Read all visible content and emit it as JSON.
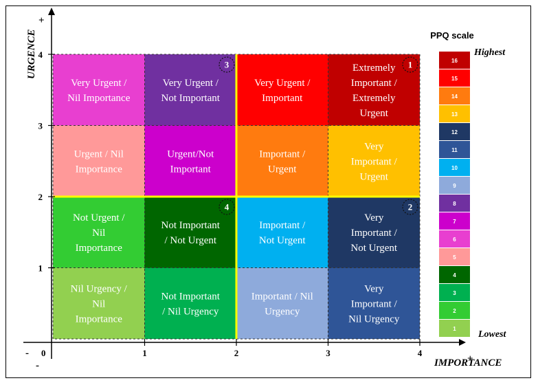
{
  "axes": {
    "x_title": "IMPORTANCE",
    "y_title": "URGENCE",
    "x_ticks": [
      "1",
      "2",
      "3",
      "4"
    ],
    "y_ticks": [
      "1",
      "2",
      "3",
      "4"
    ],
    "origin": "0",
    "plus": "+",
    "minus": "-"
  },
  "cells": [
    {
      "row": 3,
      "col": 0,
      "color": "#e83fd0",
      "lines": [
        "Very Urgent /",
        "Nil Importance"
      ]
    },
    {
      "row": 3,
      "col": 1,
      "color": "#7030a0",
      "lines": [
        "Very Urgent /",
        "Not Important"
      ]
    },
    {
      "row": 3,
      "col": 2,
      "color": "#ff0000",
      "lines": [
        "Very Urgent /",
        "Important"
      ]
    },
    {
      "row": 3,
      "col": 3,
      "color": "#c00000",
      "lines": [
        "Extremely",
        "Important /",
        "Extremely",
        "Urgent"
      ]
    },
    {
      "row": 2,
      "col": 0,
      "color": "#ff9999",
      "lines": [
        "Urgent / Nil",
        "Importance"
      ]
    },
    {
      "row": 2,
      "col": 1,
      "color": "#cc00cc",
      "lines": [
        "Urgent/Not",
        "Important"
      ]
    },
    {
      "row": 2,
      "col": 2,
      "color": "#ff7b0f",
      "lines": [
        "Important /",
        "Urgent"
      ]
    },
    {
      "row": 2,
      "col": 3,
      "color": "#ffc000",
      "lines": [
        "Very",
        "Important /",
        "Urgent"
      ]
    },
    {
      "row": 1,
      "col": 0,
      "color": "#33cc33",
      "lines": [
        "Not Urgent /",
        "Nil",
        "Importance"
      ]
    },
    {
      "row": 1,
      "col": 1,
      "color": "#006600",
      "lines": [
        "Not Important",
        "/ Not Urgent"
      ]
    },
    {
      "row": 1,
      "col": 2,
      "color": "#00b0f0",
      "lines": [
        "Important /",
        "Not Urgent"
      ]
    },
    {
      "row": 1,
      "col": 3,
      "color": "#1f3864",
      "lines": [
        "Very",
        "Important /",
        "Not Urgent"
      ]
    },
    {
      "row": 0,
      "col": 0,
      "color": "#92d050",
      "lines": [
        "Nil Urgency /",
        "Nil",
        "Importance"
      ]
    },
    {
      "row": 0,
      "col": 1,
      "color": "#00b050",
      "lines": [
        "Not Important",
        "/ Nil Urgency"
      ]
    },
    {
      "row": 0,
      "col": 2,
      "color": "#8eaadb",
      "lines": [
        "Important / Nil",
        "Urgency"
      ]
    },
    {
      "row": 0,
      "col": 3,
      "color": "#2f5597",
      "lines": [
        "Very",
        "Important /",
        "Nil Urgency"
      ]
    }
  ],
  "badges": [
    {
      "label": "1",
      "row": 3,
      "col": 3
    },
    {
      "label": "2",
      "row": 1,
      "col": 3
    },
    {
      "label": "3",
      "row": 3,
      "col": 1
    },
    {
      "label": "4",
      "row": 1,
      "col": 1
    }
  ],
  "scale": {
    "title": "PPQ scale",
    "highest": "Highest",
    "lowest": "Lowest",
    "levels": [
      {
        "label": "16",
        "color": "#c00000"
      },
      {
        "label": "15",
        "color": "#ff0000"
      },
      {
        "label": "14",
        "color": "#ff7b0f"
      },
      {
        "label": "13",
        "color": "#ffc000"
      },
      {
        "label": "12",
        "color": "#1f3864"
      },
      {
        "label": "11",
        "color": "#2f5597"
      },
      {
        "label": "10",
        "color": "#00b0f0"
      },
      {
        "label": "9",
        "color": "#8eaadb"
      },
      {
        "label": "8",
        "color": "#7030a0"
      },
      {
        "label": "7",
        "color": "#cc00cc"
      },
      {
        "label": "6",
        "color": "#e83fd0"
      },
      {
        "label": "5",
        "color": "#ff9999"
      },
      {
        "label": "4",
        "color": "#006600"
      },
      {
        "label": "3",
        "color": "#00b050"
      },
      {
        "label": "2",
        "color": "#33cc33"
      },
      {
        "label": "1",
        "color": "#92d050"
      }
    ]
  },
  "divider_color": "#ffff00"
}
